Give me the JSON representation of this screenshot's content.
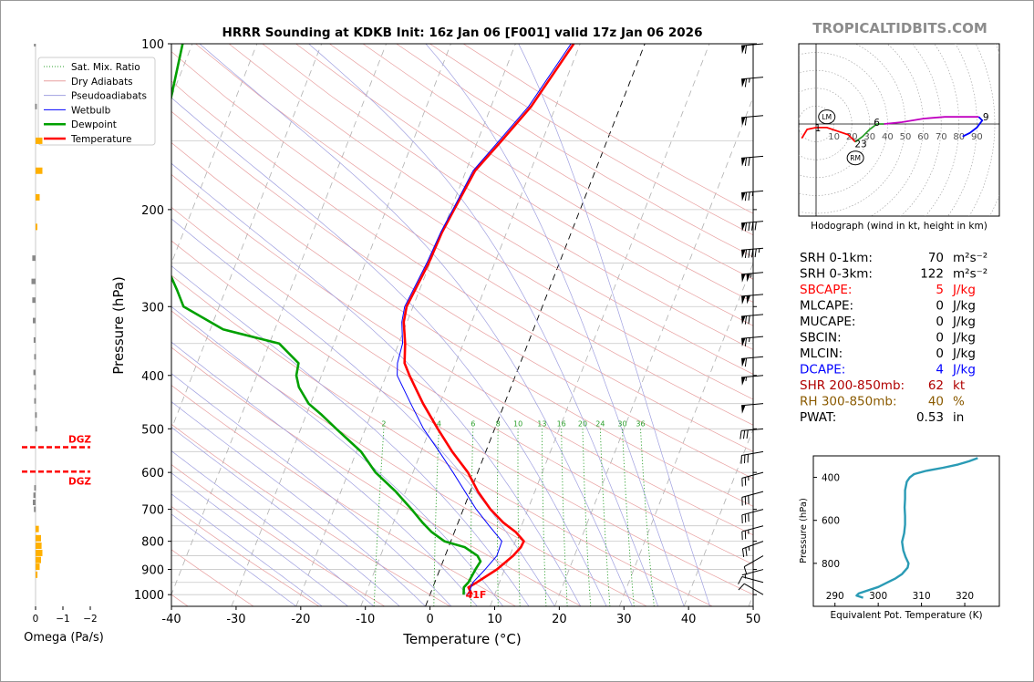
{
  "title": "HRRR Sounding at KDKB Init: 16z Jan 06 [F001] valid 17z Jan 06 2026",
  "watermark": "TROPICALTIDBITS.COM",
  "colors": {
    "temperature": "#ff0000",
    "dewpoint": "#00a000",
    "wetbulb": "#0000ff",
    "dry_adiabat": "#e8a0a0",
    "pseudoadiabat": "#a0a0e0",
    "mixing_ratio": "#2ca02c",
    "omega_bar": "#ffb000",
    "omega_gray": "#888888",
    "hodo_red": "#ff0000",
    "hodo_green": "#2ca02c",
    "hodo_magenta": "#c000c0",
    "hodo_blue": "#0000ff",
    "theta_e": "#2a9bb5",
    "sbcape": "#ff0000",
    "dcape": "#0000ff",
    "shr": "#b00000",
    "rh": "#8a5a00"
  },
  "chart_data": [
    {
      "name": "skewt",
      "type": "line",
      "xlabel": "Temperature (°C)",
      "ylabel": "Pressure (hPa)",
      "xlim": [
        -40,
        50
      ],
      "ylim": [
        1050,
        100
      ],
      "yscale": "log",
      "xticks": [
        -40,
        -30,
        -20,
        -10,
        0,
        10,
        20,
        30,
        40,
        50
      ],
      "yticks": [
        100,
        200,
        300,
        400,
        500,
        600,
        700,
        800,
        900,
        1000
      ],
      "legend_position": "top-left",
      "legend": [
        {
          "label": "Sat. Mix. Ratio",
          "style": "dotted",
          "color": "#2ca02c"
        },
        {
          "label": "Dry Adiabats",
          "style": "solid",
          "color": "#e8a0a0"
        },
        {
          "label": "Pseudoadiabats",
          "style": "solid",
          "color": "#a0a0e0"
        },
        {
          "label": "Wetbulb",
          "style": "solid",
          "color": "#0000ff"
        },
        {
          "label": "Dewpoint",
          "style": "solid-thick",
          "color": "#00a000"
        },
        {
          "label": "Temperature",
          "style": "solid-thick",
          "color": "#ff0000"
        }
      ],
      "mixing_ratio_labels": [
        "2",
        "4",
        "6",
        "8",
        "10",
        "13",
        "16",
        "20",
        "24",
        "30",
        "36"
      ],
      "surface_label": "41F",
      "series": [
        {
          "name": "Temperature",
          "points": [
            [
              1000,
              6.5
            ],
            [
              970,
              5.5
            ],
            [
              950,
              6.5
            ],
            [
              900,
              8.8
            ],
            [
              850,
              10.5
            ],
            [
              820,
              11.2
            ],
            [
              800,
              11.3
            ],
            [
              770,
              9.5
            ],
            [
              740,
              7.0
            ],
            [
              700,
              4.2
            ],
            [
              650,
              1.2
            ],
            [
              600,
              -1.5
            ],
            [
              550,
              -5.2
            ],
            [
              500,
              -8.8
            ],
            [
              450,
              -12.6
            ],
            [
              400,
              -16.4
            ],
            [
              380,
              -17.9
            ],
            [
              350,
              -19.0
            ],
            [
              320,
              -20.5
            ],
            [
              300,
              -21.0
            ],
            [
              280,
              -20.7
            ],
            [
              250,
              -20.2
            ],
            [
              220,
              -20.0
            ],
            [
              200,
              -19.5
            ],
            [
              170,
              -18.6
            ],
            [
              150,
              -16.3
            ],
            [
              130,
              -13.8
            ],
            [
              100,
              -11.0
            ]
          ]
        },
        {
          "name": "Wetbulb",
          "points": [
            [
              1000,
              5.9
            ],
            [
              950,
              5.9
            ],
            [
              900,
              7.0
            ],
            [
              850,
              8.0
            ],
            [
              800,
              7.9
            ],
            [
              750,
              5.0
            ],
            [
              700,
              2.0
            ],
            [
              650,
              -0.8
            ],
            [
              600,
              -3.8
            ],
            [
              550,
              -7.2
            ],
            [
              500,
              -11.0
            ],
            [
              450,
              -14.5
            ],
            [
              400,
              -18.3
            ],
            [
              380,
              -19.0
            ],
            [
              350,
              -19.4
            ],
            [
              320,
              -20.8
            ],
            [
              300,
              -21.3
            ],
            [
              280,
              -21.0
            ],
            [
              250,
              -20.5
            ],
            [
              220,
              -20.2
            ],
            [
              200,
              -19.7
            ],
            [
              170,
              -18.9
            ],
            [
              150,
              -16.7
            ],
            [
              130,
              -14.2
            ],
            [
              100,
              -11.4
            ]
          ]
        },
        {
          "name": "Dewpoint",
          "points": [
            [
              1000,
              5.2
            ],
            [
              970,
              4.8
            ],
            [
              950,
              5.2
            ],
            [
              900,
              5.5
            ],
            [
              870,
              5.8
            ],
            [
              850,
              5.0
            ],
            [
              820,
              2.5
            ],
            [
              800,
              -1.0
            ],
            [
              770,
              -3.5
            ],
            [
              740,
              -5.5
            ],
            [
              700,
              -8.0
            ],
            [
              650,
              -11.5
            ],
            [
              600,
              -15.8
            ],
            [
              550,
              -19.3
            ],
            [
              500,
              -24.5
            ],
            [
              470,
              -27.8
            ],
            [
              450,
              -30.3
            ],
            [
              420,
              -32.8
            ],
            [
              400,
              -33.9
            ],
            [
              380,
              -34.3
            ],
            [
              350,
              -38.5
            ],
            [
              330,
              -48.0
            ],
            [
              300,
              -55.5
            ],
            [
              280,
              -57.5
            ],
            [
              250,
              -61.0
            ],
            [
              220,
              -67.0
            ],
            [
              200,
              -67.5
            ],
            [
              170,
              -67.5
            ],
            [
              150,
              -68.3
            ],
            [
              130,
              -69.8
            ],
            [
              100,
              -71.5
            ]
          ]
        }
      ],
      "wind_barbs": [
        {
          "p": 1000,
          "dir": 300,
          "kt": 12
        },
        {
          "p": 950,
          "dir": 285,
          "kt": 10
        },
        {
          "p": 900,
          "dir": 255,
          "kt": 5
        },
        {
          "p": 850,
          "dir": 240,
          "kt": 10
        },
        {
          "p": 800,
          "dir": 250,
          "kt": 25
        },
        {
          "p": 750,
          "dir": 255,
          "kt": 25
        },
        {
          "p": 700,
          "dir": 255,
          "kt": 30
        },
        {
          "p": 650,
          "dir": 255,
          "kt": 30
        },
        {
          "p": 600,
          "dir": 255,
          "kt": 25
        },
        {
          "p": 550,
          "dir": 260,
          "kt": 30
        },
        {
          "p": 500,
          "dir": 265,
          "kt": 30
        },
        {
          "p": 450,
          "dir": 265,
          "kt": 50
        },
        {
          "p": 400,
          "dir": 265,
          "kt": 55
        },
        {
          "p": 370,
          "dir": 265,
          "kt": 60
        },
        {
          "p": 340,
          "dir": 265,
          "kt": 65
        },
        {
          "p": 310,
          "dir": 265,
          "kt": 70
        },
        {
          "p": 285,
          "dir": 265,
          "kt": 100
        },
        {
          "p": 260,
          "dir": 265,
          "kt": 105
        },
        {
          "p": 235,
          "dir": 265,
          "kt": 95
        },
        {
          "p": 210,
          "dir": 265,
          "kt": 90
        },
        {
          "p": 185,
          "dir": 265,
          "kt": 75
        },
        {
          "p": 160,
          "dir": 265,
          "kt": 70
        },
        {
          "p": 135,
          "dir": 265,
          "kt": 60
        },
        {
          "p": 115,
          "dir": 265,
          "kt": 65
        },
        {
          "p": 100,
          "dir": 265,
          "kt": 60
        }
      ]
    },
    {
      "name": "omega",
      "type": "bar",
      "xlabel": "Omega (Pa/s)",
      "xticks": [
        "0",
        "−1",
        "−2"
      ],
      "xlim": [
        0.2,
        -2.2
      ],
      "dgz_label": "DGZ",
      "dgz_pressures": [
        540,
        598
      ],
      "bars": [
        {
          "p": 100,
          "v": 0.06,
          "c": "gray"
        },
        {
          "p": 130,
          "v": 0.02,
          "c": "gray"
        },
        {
          "p": 150,
          "v": -0.25,
          "c": "orange"
        },
        {
          "p": 170,
          "v": -0.25,
          "c": "orange"
        },
        {
          "p": 190,
          "v": -0.15,
          "c": "orange"
        },
        {
          "p": 215,
          "v": -0.04,
          "c": "orange"
        },
        {
          "p": 245,
          "v": 0.12,
          "c": "gray"
        },
        {
          "p": 270,
          "v": 0.15,
          "c": "gray"
        },
        {
          "p": 292,
          "v": 0.12,
          "c": "gray"
        },
        {
          "p": 318,
          "v": 0.1,
          "c": "gray"
        },
        {
          "p": 345,
          "v": 0.07,
          "c": "gray"
        },
        {
          "p": 370,
          "v": 0.05,
          "c": "gray"
        },
        {
          "p": 395,
          "v": 0.08,
          "c": "gray"
        },
        {
          "p": 420,
          "v": 0.05,
          "c": "gray"
        },
        {
          "p": 445,
          "v": 0.05,
          "c": "gray"
        },
        {
          "p": 472,
          "v": 0.02,
          "c": "gray"
        },
        {
          "p": 500,
          "v": 0.01,
          "c": "gray"
        },
        {
          "p": 640,
          "v": 0.05,
          "c": "gray"
        },
        {
          "p": 660,
          "v": 0.08,
          "c": "gray"
        },
        {
          "p": 680,
          "v": 0.1,
          "c": "gray"
        },
        {
          "p": 700,
          "v": 0.06,
          "c": "gray"
        },
        {
          "p": 760,
          "v": -0.12,
          "c": "orange"
        },
        {
          "p": 790,
          "v": -0.2,
          "c": "orange"
        },
        {
          "p": 815,
          "v": -0.22,
          "c": "orange"
        },
        {
          "p": 840,
          "v": -0.25,
          "c": "orange"
        },
        {
          "p": 865,
          "v": -0.2,
          "c": "orange"
        },
        {
          "p": 890,
          "v": -0.15,
          "c": "orange"
        },
        {
          "p": 920,
          "v": -0.07,
          "c": "orange"
        }
      ]
    },
    {
      "name": "hodograph",
      "type": "line",
      "caption": "Hodograph (wind in kt, height in km)",
      "ring_labels": [
        "10",
        "20",
        "30",
        "40",
        "50",
        "60",
        "70",
        "80",
        "90"
      ],
      "height_labels": [
        {
          "label": "1",
          "u": 1,
          "v": -2
        },
        {
          "label": "23",
          "u": 25,
          "v": -11
        },
        {
          "label": "6",
          "u": 34,
          "v": 1
        },
        {
          "label": "9",
          "u": 95,
          "v": 4
        }
      ],
      "storm_motion": [
        {
          "label": "LM",
          "u": 6,
          "v": 4
        },
        {
          "label": "RM",
          "u": 22,
          "v": -19
        }
      ],
      "segments": [
        {
          "color": "hodo_red",
          "points": [
            [
              -8,
              -8
            ],
            [
              -5,
              -3
            ],
            [
              0,
              -2
            ],
            [
              6,
              -2
            ],
            [
              12,
              -4
            ],
            [
              18,
              -6
            ],
            [
              22,
              -10
            ]
          ]
        },
        {
          "color": "hodo_green",
          "points": [
            [
              22,
              -10
            ],
            [
              26,
              -7
            ],
            [
              30,
              -3
            ],
            [
              34,
              0
            ],
            [
              38,
              0
            ]
          ]
        },
        {
          "color": "hodo_magenta",
          "points": [
            [
              38,
              0
            ],
            [
              48,
              1
            ],
            [
              60,
              3
            ],
            [
              72,
              4
            ],
            [
              83,
              4
            ],
            [
              91,
              4
            ]
          ]
        },
        {
          "color": "hodo_blue",
          "points": [
            [
              91,
              4
            ],
            [
              93,
              2
            ],
            [
              90,
              -2
            ],
            [
              86,
              -5
            ],
            [
              82,
              -7
            ]
          ]
        }
      ]
    },
    {
      "name": "theta_e",
      "type": "line",
      "xlabel": "Equivalent Pot. Temperature (K)",
      "ylabel": "Pressure (hPa)",
      "xticks": [
        "290",
        "300",
        "310",
        "320"
      ],
      "yticks": [
        "400",
        "600",
        "800"
      ],
      "xlim": [
        285,
        328
      ],
      "ylim": [
        1000,
        300
      ],
      "points": [
        [
          960,
          296.5
        ],
        [
          950,
          295
        ],
        [
          940,
          295.5
        ],
        [
          930,
          297
        ],
        [
          910,
          300
        ],
        [
          890,
          302
        ],
        [
          870,
          304
        ],
        [
          850,
          305.5
        ],
        [
          820,
          306.8
        ],
        [
          800,
          307
        ],
        [
          770,
          306.3
        ],
        [
          740,
          305.8
        ],
        [
          700,
          305.5
        ],
        [
          660,
          306
        ],
        [
          620,
          306.2
        ],
        [
          580,
          306.2
        ],
        [
          540,
          306.1
        ],
        [
          500,
          306.2
        ],
        [
          460,
          306.2
        ],
        [
          420,
          306.6
        ],
        [
          400,
          307.3
        ],
        [
          385,
          308.3
        ],
        [
          370,
          311
        ],
        [
          355,
          315
        ],
        [
          340,
          318.5
        ],
        [
          325,
          321
        ],
        [
          310,
          323
        ]
      ]
    }
  ],
  "indices": [
    {
      "label": "SRH 0-1km:",
      "value": "70",
      "unit": "m²s⁻²",
      "color": "#000000"
    },
    {
      "label": "SRH 0-3km:",
      "value": "122",
      "unit": "m²s⁻²",
      "color": "#000000"
    },
    {
      "label": "SBCAPE:",
      "value": "5",
      "unit": "J/kg",
      "color": "#ff0000"
    },
    {
      "label": "MLCAPE:",
      "value": "0",
      "unit": "J/kg",
      "color": "#000000"
    },
    {
      "label": "MUCAPE:",
      "value": "0",
      "unit": "J/kg",
      "color": "#000000"
    },
    {
      "label": "SBCIN:",
      "value": "0",
      "unit": "J/kg",
      "color": "#000000"
    },
    {
      "label": "MLCIN:",
      "value": "0",
      "unit": "J/kg",
      "color": "#000000"
    },
    {
      "label": "DCAPE:",
      "value": "4",
      "unit": "J/kg",
      "color": "#0000ff"
    },
    {
      "label": "SHR 200-850mb:",
      "value": "62",
      "unit": "kt",
      "color": "#b00000"
    },
    {
      "label": "RH 300-850mb:",
      "value": "40",
      "unit": "%",
      "color": "#8a5a00"
    },
    {
      "label": "PWAT:",
      "value": "0.53",
      "unit": "in",
      "color": "#000000"
    }
  ]
}
